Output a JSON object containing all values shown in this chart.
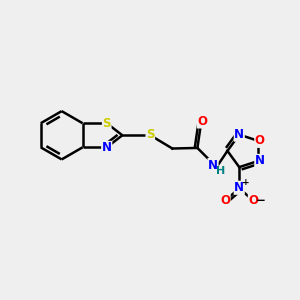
{
  "bg_color": "#efefef",
  "bond_color": "#000000",
  "bond_width": 1.8,
  "atom_colors": {
    "S": "#cccc00",
    "N": "#0000ff",
    "O": "#ff0000",
    "C": "#000000",
    "H": "#008080"
  },
  "font_size": 8.5,
  "fig_size": [
    3.0,
    3.0
  ],
  "dpi": 100
}
